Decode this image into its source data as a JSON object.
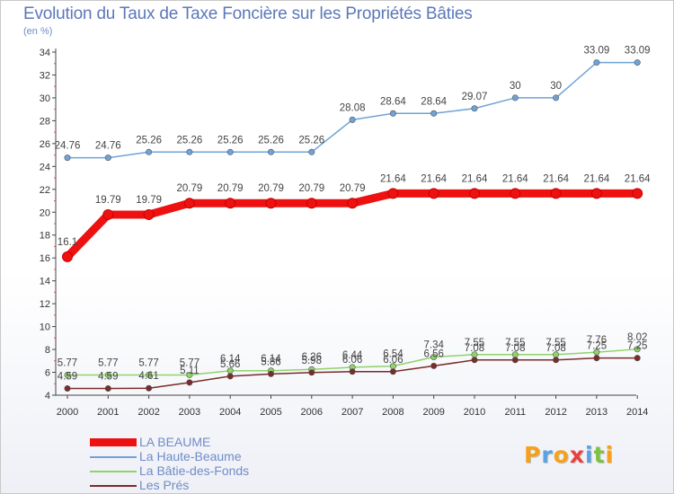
{
  "title": "Evolution du Taux de Taxe Foncière sur les Propriétés Bâties",
  "unit_label": "(en %)",
  "brand": {
    "letters": [
      "P",
      "r",
      "o",
      "x",
      "i",
      "t",
      "i"
    ],
    "colors": [
      "#f7a11a",
      "#5aa2e0",
      "#f7a11a",
      "#e8413c",
      "#5aa2e0",
      "#7cc242",
      "#f7a11a"
    ]
  },
  "chart_data": {
    "type": "line",
    "title": "Evolution du Taux de Taxe Foncière sur les Propriétés Bâties",
    "ylabel": "(en %)",
    "xlabel": "",
    "x": [
      "2000",
      "2001",
      "2002",
      "2003",
      "2004",
      "2005",
      "2006",
      "2007",
      "2008",
      "2009",
      "2010",
      "2011",
      "2012",
      "2013",
      "2014"
    ],
    "ylim": [
      4,
      34
    ],
    "yticks": [
      "4",
      "6",
      "8",
      "10",
      "12",
      "14",
      "16",
      "18",
      "20",
      "22",
      "24",
      "26",
      "28",
      "30",
      "32",
      "34"
    ],
    "grid": false,
    "legend_position": "bottom-left",
    "series": [
      {
        "name": "La Haute-Beaume",
        "color": "#6fa3d8",
        "values": [
          24.76,
          24.76,
          25.26,
          25.26,
          25.26,
          25.26,
          25.26,
          28.08,
          28.64,
          28.64,
          29.07,
          30,
          30,
          33.09,
          33.09
        ],
        "labels": [
          "24.76",
          "24.76",
          "25.26",
          "25.26",
          "25.26",
          "25.26",
          "25.26",
          "28.08",
          "28.64",
          "28.64",
          "29.07",
          "30",
          "30",
          "33.09",
          "33.09"
        ]
      },
      {
        "name": "LA BEAUME",
        "color": "#ee1111",
        "values": [
          16.1,
          19.79,
          19.79,
          20.79,
          20.79,
          20.79,
          20.79,
          20.79,
          21.64,
          21.64,
          21.64,
          21.64,
          21.64,
          21.64,
          21.64
        ],
        "labels": [
          "16.1",
          "19.79",
          "19.79",
          "20.79",
          "20.79",
          "20.79",
          "20.79",
          "20.79",
          "21.64",
          "21.64",
          "21.64",
          "21.64",
          "21.64",
          "21.64",
          "21.64"
        ]
      },
      {
        "name": "La Bâtie-des-Fonds",
        "color": "#8fd36b",
        "values": [
          5.77,
          5.77,
          5.77,
          5.77,
          6.14,
          6.14,
          6.26,
          6.44,
          6.54,
          7.34,
          7.55,
          7.55,
          7.55,
          7.76,
          8.02
        ],
        "labels": [
          "5.77",
          "5.77",
          "5.77",
          "5.77",
          "6.14",
          "6.14",
          "6.26",
          "6.44",
          "6.54",
          "7.34",
          "7.55",
          "7.55",
          "7.55",
          "7.76",
          "8.02"
        ]
      },
      {
        "name": "Les Prés",
        "color": "#7a2b2b",
        "values": [
          4.59,
          4.59,
          4.61,
          5.11,
          5.66,
          5.86,
          5.98,
          6.06,
          6.06,
          6.56,
          7.08,
          7.08,
          7.08,
          7.25,
          7.25
        ],
        "labels": [
          "4.59",
          "4.59",
          "4.61",
          "5.11",
          "5.66",
          "5.86",
          "5.98",
          "6.06",
          "6.06",
          "6.56",
          "7.08",
          "7.08",
          "7.08",
          "7.25",
          "7.25"
        ]
      }
    ]
  }
}
